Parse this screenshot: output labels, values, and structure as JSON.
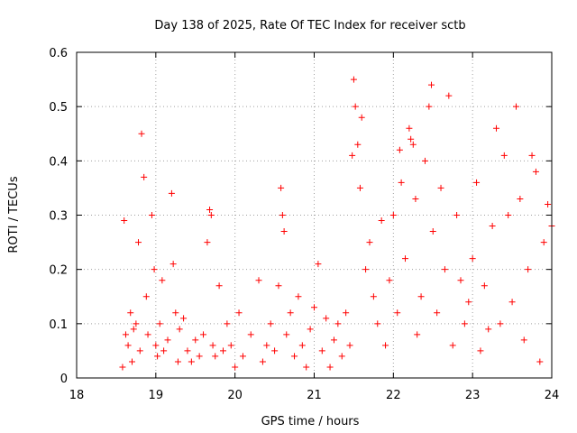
{
  "chart_data": {
    "type": "scatter",
    "title": "Day 138 of 2025, Rate Of TEC Index for receiver sctb",
    "xlabel": "GPS time / hours",
    "ylabel": "ROTI / TECUs",
    "xlim": [
      18,
      24
    ],
    "ylim": [
      0,
      0.6
    ],
    "xticks": [
      "18",
      "19",
      "20",
      "21",
      "22",
      "23",
      "24"
    ],
    "yticks": [
      "0",
      "0.1",
      "0.2",
      "0.3",
      "0.4",
      "0.5",
      "0.6"
    ],
    "grid": true,
    "marker": "+",
    "colors": {
      "points": "#ff0000",
      "grid": "#a0a0a0",
      "axes": "#000000"
    },
    "series": [
      {
        "x": [
          18.58,
          18.6,
          18.62,
          18.65,
          18.68,
          18.7,
          18.72,
          18.75,
          18.78,
          18.8,
          18.82,
          18.85,
          18.88,
          18.9,
          18.95,
          18.98,
          19.0,
          19.02,
          19.05,
          19.08,
          19.1,
          19.15,
          19.2,
          19.22,
          19.25,
          19.28,
          19.3,
          19.35,
          19.4,
          19.45,
          19.5,
          19.55,
          19.6,
          19.65,
          19.68,
          19.7,
          19.72,
          19.75,
          19.8,
          19.85,
          19.9,
          19.95,
          20.0,
          20.05,
          20.1,
          20.2,
          20.3,
          20.35,
          20.4,
          20.45,
          20.5,
          20.55,
          20.58,
          20.6,
          20.62,
          20.65,
          20.7,
          20.75,
          20.8,
          20.85,
          20.9,
          20.95,
          21.0,
          21.05,
          21.1,
          21.15,
          21.2,
          21.25,
          21.3,
          21.35,
          21.4,
          21.45,
          21.48,
          21.5,
          21.52,
          21.55,
          21.58,
          21.6,
          21.65,
          21.7,
          21.75,
          21.8,
          21.85,
          21.9,
          21.95,
          22.0,
          22.05,
          22.08,
          22.1,
          22.15,
          22.2,
          22.22,
          22.25,
          22.28,
          22.3,
          22.35,
          22.4,
          22.45,
          22.48,
          22.5,
          22.55,
          22.6,
          22.65,
          22.7,
          22.75,
          22.8,
          22.85,
          22.9,
          22.95,
          23.0,
          23.05,
          23.1,
          23.15,
          23.2,
          23.25,
          23.3,
          23.35,
          23.4,
          23.45,
          23.5,
          23.55,
          23.6,
          23.65,
          23.7,
          23.75,
          23.8,
          23.85,
          23.9,
          23.95,
          24.0
        ],
        "y": [
          0.02,
          0.29,
          0.08,
          0.06,
          0.12,
          0.03,
          0.09,
          0.1,
          0.25,
          0.05,
          0.45,
          0.37,
          0.15,
          0.08,
          0.3,
          0.2,
          0.06,
          0.04,
          0.1,
          0.18,
          0.05,
          0.07,
          0.34,
          0.21,
          0.12,
          0.03,
          0.09,
          0.11,
          0.05,
          0.03,
          0.07,
          0.04,
          0.08,
          0.25,
          0.31,
          0.3,
          0.06,
          0.04,
          0.17,
          0.05,
          0.1,
          0.06,
          0.02,
          0.12,
          0.04,
          0.08,
          0.18,
          0.03,
          0.06,
          0.1,
          0.05,
          0.17,
          0.35,
          0.3,
          0.27,
          0.08,
          0.12,
          0.04,
          0.15,
          0.06,
          0.02,
          0.09,
          0.13,
          0.21,
          0.05,
          0.11,
          0.02,
          0.07,
          0.1,
          0.04,
          0.12,
          0.06,
          0.41,
          0.55,
          0.5,
          0.43,
          0.35,
          0.48,
          0.2,
          0.25,
          0.15,
          0.1,
          0.29,
          0.06,
          0.18,
          0.3,
          0.12,
          0.42,
          0.36,
          0.22,
          0.46,
          0.44,
          0.43,
          0.33,
          0.08,
          0.15,
          0.4,
          0.5,
          0.54,
          0.27,
          0.12,
          0.35,
          0.2,
          0.52,
          0.06,
          0.3,
          0.18,
          0.1,
          0.14,
          0.22,
          0.36,
          0.05,
          0.17,
          0.09,
          0.28,
          0.46,
          0.1,
          0.41,
          0.3,
          0.14,
          0.5,
          0.33,
          0.07,
          0.2,
          0.41,
          0.38,
          0.03,
          0.25,
          0.32,
          0.28
        ]
      }
    ]
  }
}
